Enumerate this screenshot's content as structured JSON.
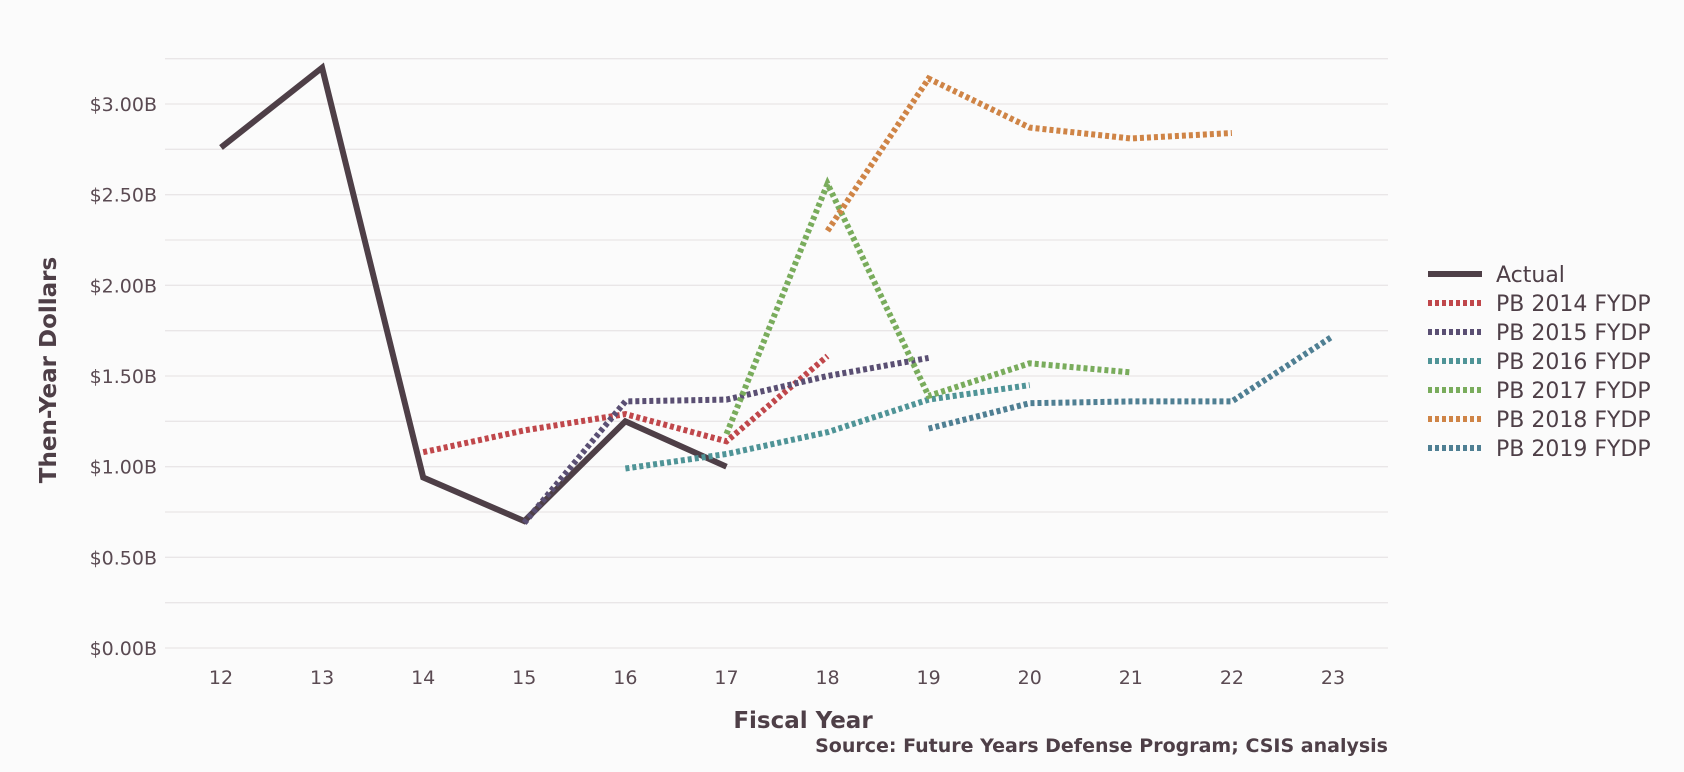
{
  "chart_data": {
    "type": "line",
    "title": "",
    "xlabel": "Fiscal Year",
    "ylabel": "Then-Year Dollars",
    "source": "Source: Future Years Defense Program; CSIS analysis",
    "x_ticks": [
      12,
      13,
      14,
      15,
      16,
      17,
      18,
      19,
      20,
      21,
      22,
      23
    ],
    "y_ticks": [
      {
        "value": 0.0,
        "label": "$0.00B"
      },
      {
        "value": 0.5,
        "label": "$0.50B"
      },
      {
        "value": 1.0,
        "label": "$1.00B"
      },
      {
        "value": 1.5,
        "label": "$1.50B"
      },
      {
        "value": 2.0,
        "label": "$2.00B"
      },
      {
        "value": 2.5,
        "label": "$2.50B"
      },
      {
        "value": 3.0,
        "label": "$3.00B"
      }
    ],
    "xlim": [
      11.5,
      24.6
    ],
    "ylim": [
      0,
      3.25
    ],
    "grid": true,
    "legend_position": "right",
    "series": [
      {
        "name": "Actual",
        "color": "#4e3f47",
        "style": "solid",
        "points": [
          [
            12,
            2.76
          ],
          [
            13,
            3.2
          ],
          [
            14,
            0.94
          ],
          [
            15,
            0.7
          ],
          [
            16,
            1.25
          ],
          [
            17,
            1.0
          ]
        ]
      },
      {
        "name": "PB 2014 FYDP",
        "color": "#c0474b",
        "style": "dotted",
        "points": [
          [
            14,
            1.08
          ],
          [
            15,
            1.2
          ],
          [
            16,
            1.29
          ],
          [
            17,
            1.14
          ],
          [
            18,
            1.61
          ]
        ]
      },
      {
        "name": "PB 2015 FYDP",
        "color": "#5a4f73",
        "style": "dotted",
        "points": [
          [
            15,
            0.69
          ],
          [
            16,
            1.36
          ],
          [
            17,
            1.37
          ],
          [
            18,
            1.5
          ],
          [
            19,
            1.6
          ]
        ]
      },
      {
        "name": "PB 2016 FYDP",
        "color": "#4f9497",
        "style": "dotted",
        "points": [
          [
            16,
            0.99
          ],
          [
            17,
            1.07
          ],
          [
            18,
            1.19
          ],
          [
            19,
            1.37
          ],
          [
            20,
            1.45
          ]
        ]
      },
      {
        "name": "PB 2017 FYDP",
        "color": "#79ac5c",
        "style": "dotted",
        "points": [
          [
            17,
            1.18
          ],
          [
            18,
            2.56
          ],
          [
            19,
            1.39
          ],
          [
            20,
            1.57
          ],
          [
            21,
            1.52
          ]
        ]
      },
      {
        "name": "PB 2018 FYDP",
        "color": "#cf8446",
        "style": "dotted",
        "points": [
          [
            18,
            2.3
          ],
          [
            19,
            3.14
          ],
          [
            20,
            2.87
          ],
          [
            21,
            2.81
          ],
          [
            22,
            2.84
          ]
        ]
      },
      {
        "name": "PB 2019 FYDP",
        "color": "#4f7f93",
        "style": "dotted",
        "points": [
          [
            19,
            1.21
          ],
          [
            20,
            1.35
          ],
          [
            21,
            1.36
          ],
          [
            22,
            1.36
          ],
          [
            23,
            1.72
          ]
        ]
      }
    ]
  }
}
